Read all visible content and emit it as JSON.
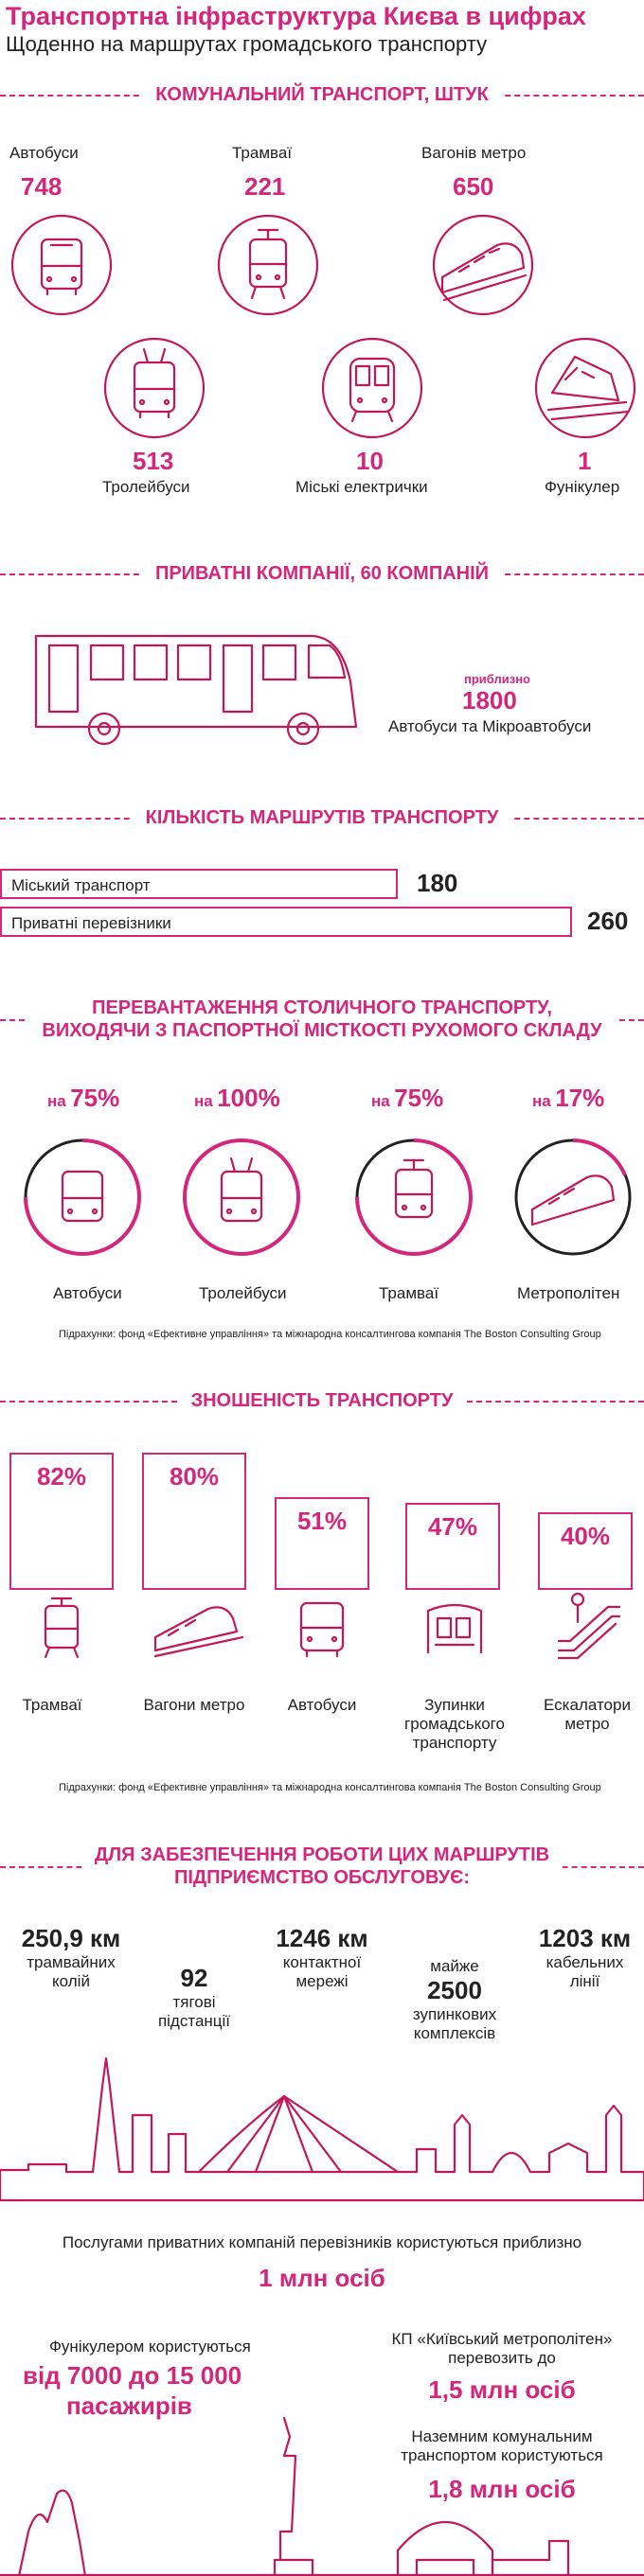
{
  "header": {
    "title": "Транспортна інфраструктура Києва в цифрах",
    "subtitle": "Щоденно на маршрутах громадського транспорту"
  },
  "section1": {
    "heading": "КОМУНАЛЬНИЙ ТРАНСПОРТ, ШТУК",
    "items": [
      {
        "label": "Автобуси",
        "value": "748"
      },
      {
        "label": "Трамваї",
        "value": "221"
      },
      {
        "label": "Вагонів метро",
        "value": "650"
      },
      {
        "label": "Тролейбуси",
        "value": "513"
      },
      {
        "label": "Міські електрички",
        "value": "10"
      },
      {
        "label": "Фунікулер",
        "value": "1"
      }
    ]
  },
  "section2": {
    "heading": "ПРИВАТНІ КОМПАНІЇ, 60 КОМПАНІЙ",
    "approx": "приблизно",
    "value": "1800",
    "label": "Автобуси та Мікроавтобуси"
  },
  "section3": {
    "heading": "КІЛЬКІСТЬ МАРШРУТІВ ТРАНСПОРТУ",
    "routes": [
      {
        "label": "Міський транспорт",
        "value": "180"
      },
      {
        "label": "Приватні перевізники",
        "value": "260"
      }
    ]
  },
  "section4": {
    "heading_line1": "ПЕРЕВАНТАЖЕННЯ СТОЛИЧНОГО ТРАНСПОРТУ,",
    "heading_line2": "ВИХОДЯЧИ З ПАСПОРТНОЇ МІСТКОСТІ РУХОМОГО СКЛАДУ",
    "prefix": "на",
    "items": [
      {
        "pct": "75%",
        "label": "Автобуси"
      },
      {
        "pct": "100%",
        "label": "Тролейбуси"
      },
      {
        "pct": "75%",
        "label": "Трамваї"
      },
      {
        "pct": "17%",
        "label": "Метрополітен"
      }
    ],
    "source": "Підрахунки: фонд «Ефективне управління» та міжнародна консалтингова компанія The Boston Consulting Group"
  },
  "section5": {
    "heading": "ЗНОШЕНІСТЬ ТРАНСПОРТУ",
    "items": [
      {
        "pct": "82%",
        "label": "Трамваї"
      },
      {
        "pct": "80%",
        "label": "Вагони метро"
      },
      {
        "pct": "51%",
        "label": "Автобуси"
      },
      {
        "pct": "47%",
        "label_l1": "Зупинки",
        "label_l2": "громадського",
        "label_l3": "транспорту"
      },
      {
        "pct": "40%",
        "label_l1": "Ескалатори",
        "label_l2": "метро"
      }
    ],
    "source": "Підрахунки: фонд «Ефективне управління» та міжнародна консалтингова компанія The Boston Consulting Group"
  },
  "section6": {
    "heading_line1": "ДЛЯ ЗАБЕЗПЕЧЕННЯ РОБОТИ ЦИХ МАРШРУТІВ",
    "heading_line2": "ПІДПРИЄМСТВО ОБСЛУГОВУЄ:",
    "stat1": {
      "value": "250,9 км",
      "l1": "трамвайних",
      "l2": "колій"
    },
    "stat2": {
      "value": "92",
      "l1": "тягові",
      "l2": "підстанції"
    },
    "stat3": {
      "value": "1246 км",
      "l1": "контактної",
      "l2": "мережі"
    },
    "stat4": {
      "pre": "майже",
      "value": "2500",
      "l1": "зупинкових",
      "l2": "комплексів"
    },
    "stat5": {
      "value": "1203 км",
      "l1": "кабельних",
      "l2": "лінії"
    }
  },
  "section7": {
    "private_text": "Послугами приватних компаній перевізників користуються приблизно",
    "private_value": "1 млн осіб",
    "funicular_text": "Фунікулером користуються",
    "funicular_value_l1": "від 7000 до 15 000",
    "funicular_value_l2": "пасажирів",
    "metro_text_l1": "КП «Київський метрополітен»",
    "metro_text_l2": "перевозить до",
    "metro_value": "1,5 млн осіб",
    "ground_text_l1": "Наземним комунальним",
    "ground_text_l2": "транспортом користуються",
    "ground_value": "1,8 млн осіб"
  },
  "colors": {
    "accent": "#d4267d"
  }
}
